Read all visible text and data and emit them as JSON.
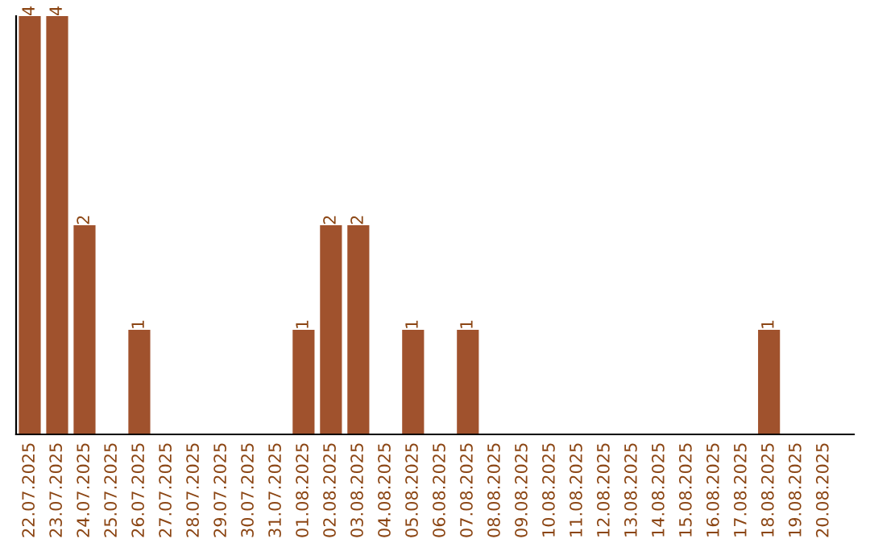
{
  "chart_data": {
    "type": "bar",
    "categories": [
      "22.07.2025",
      "23.07.2025",
      "24.07.2025",
      "25.07.2025",
      "26.07.2025",
      "27.07.2025",
      "28.07.2025",
      "29.07.2025",
      "30.07.2025",
      "31.07.2025",
      "01.08.2025",
      "02.08.2025",
      "03.08.2025",
      "04.08.2025",
      "05.08.2025",
      "06.08.2025",
      "07.08.2025",
      "08.08.2025",
      "09.08.2025",
      "10.08.2025",
      "11.08.2025",
      "12.08.2025",
      "13.08.2025",
      "14.08.2025",
      "15.08.2025",
      "16.08.2025",
      "17.08.2025",
      "18.08.2025",
      "19.08.2025",
      "20.08.2025"
    ],
    "values": [
      4,
      4,
      2,
      0,
      1,
      0,
      0,
      0,
      0,
      0,
      1,
      2,
      2,
      0,
      1,
      0,
      1,
      0,
      0,
      0,
      0,
      0,
      0,
      0,
      0,
      0,
      0,
      1,
      0,
      0
    ],
    "value_labels": [
      "4",
      "4",
      "2",
      null,
      "1",
      null,
      null,
      null,
      null,
      null,
      "1",
      "2",
      "2",
      null,
      "1",
      null,
      "1",
      null,
      null,
      null,
      null,
      null,
      null,
      null,
      null,
      null,
      null,
      "1",
      null,
      null
    ],
    "color": "#a0522d",
    "tick_labels": "x",
    "grid": false,
    "legend": false
  }
}
